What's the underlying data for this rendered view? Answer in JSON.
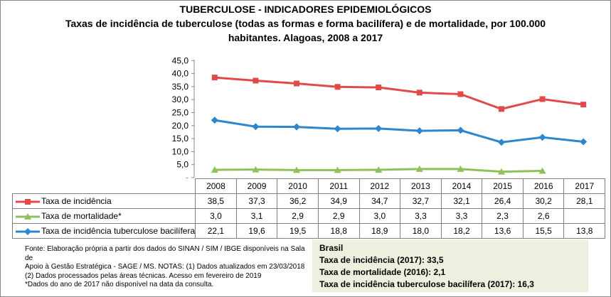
{
  "title": "TUBERCULOSE - INDICADORES EPIDEMIOLÓGICOS",
  "subtitle_line1": "Taxas de incidência de tuberculose (todas as formas e forma bacilífera) e de mortalidade,  por 100.000",
  "subtitle_line2": "habitantes. Alagoas, 2008 a 2017",
  "chart_data": {
    "type": "line",
    "title": "TUBERCULOSE - INDICADORES EPIDEMIOLÓGICOS",
    "categories": [
      "2008",
      "2009",
      "2010",
      "2011",
      "2012",
      "2013",
      "2014",
      "2015",
      "2016",
      "2017"
    ],
    "ylim": [
      0,
      45
    ],
    "yticks": [
      "-",
      "5,0",
      "10,0",
      "15,0",
      "20,0",
      "25,0",
      "30,0",
      "35,0",
      "40,0",
      "45,0"
    ],
    "grid": false,
    "legend": "table-bottom",
    "series": [
      {
        "name": "Taxa de incidência",
        "color": "#e04a4a",
        "marker": "square",
        "values": [
          38.5,
          37.3,
          36.2,
          34.9,
          34.7,
          32.7,
          32.1,
          26.4,
          30.2,
          28.1
        ],
        "labels": [
          "38,5",
          "37,3",
          "36,2",
          "34,9",
          "34,7",
          "32,7",
          "32,1",
          "26,4",
          "30,2",
          "28,1"
        ]
      },
      {
        "name": "Taxa de mortalidade*",
        "color": "#8fc15a",
        "marker": "triangle",
        "values": [
          3.0,
          3.1,
          2.9,
          2.9,
          3.0,
          3.3,
          3.3,
          2.3,
          2.6,
          null
        ],
        "labels": [
          "3,0",
          "3,1",
          "2,9",
          "2,9",
          "3,0",
          "3,3",
          "3,3",
          "2,3",
          "2,6",
          ""
        ]
      },
      {
        "name": "Taxa de incidência tuberculose bacilífera",
        "color": "#2e86cc",
        "marker": "diamond",
        "values": [
          22.1,
          19.6,
          19.5,
          18.8,
          18.9,
          18.0,
          18.2,
          13.6,
          15.5,
          13.8
        ],
        "labels": [
          "22,1",
          "19,6",
          "19,5",
          "18,8",
          "18,9",
          "18,0",
          "18,2",
          "13,6",
          "15,5",
          "13,8"
        ]
      }
    ]
  },
  "notes": [
    "Fonte: Elaboração própria a partir dos dados do SINAN / SIM / IBGE  disponíveis na Sala de",
    "Apoio  à Gestão Estratégica - SAGE / MS. NOTAS: (1) Dados atualizados em 23/03/2018",
    "(2) Dados processados pelas áreas técnicas. Acesso em fevereiro de 2019",
    "*Dados do ano de 2017 não disponível na data da consulta."
  ],
  "brasil": {
    "heading": "Brasil",
    "lines": [
      "Taxa de incidência (2017): 33,5",
      "Taxa de mortalidade (2016): 2,1",
      "Taxa de incidência  tuberculose bacilífera  (2017): 16,3"
    ]
  }
}
